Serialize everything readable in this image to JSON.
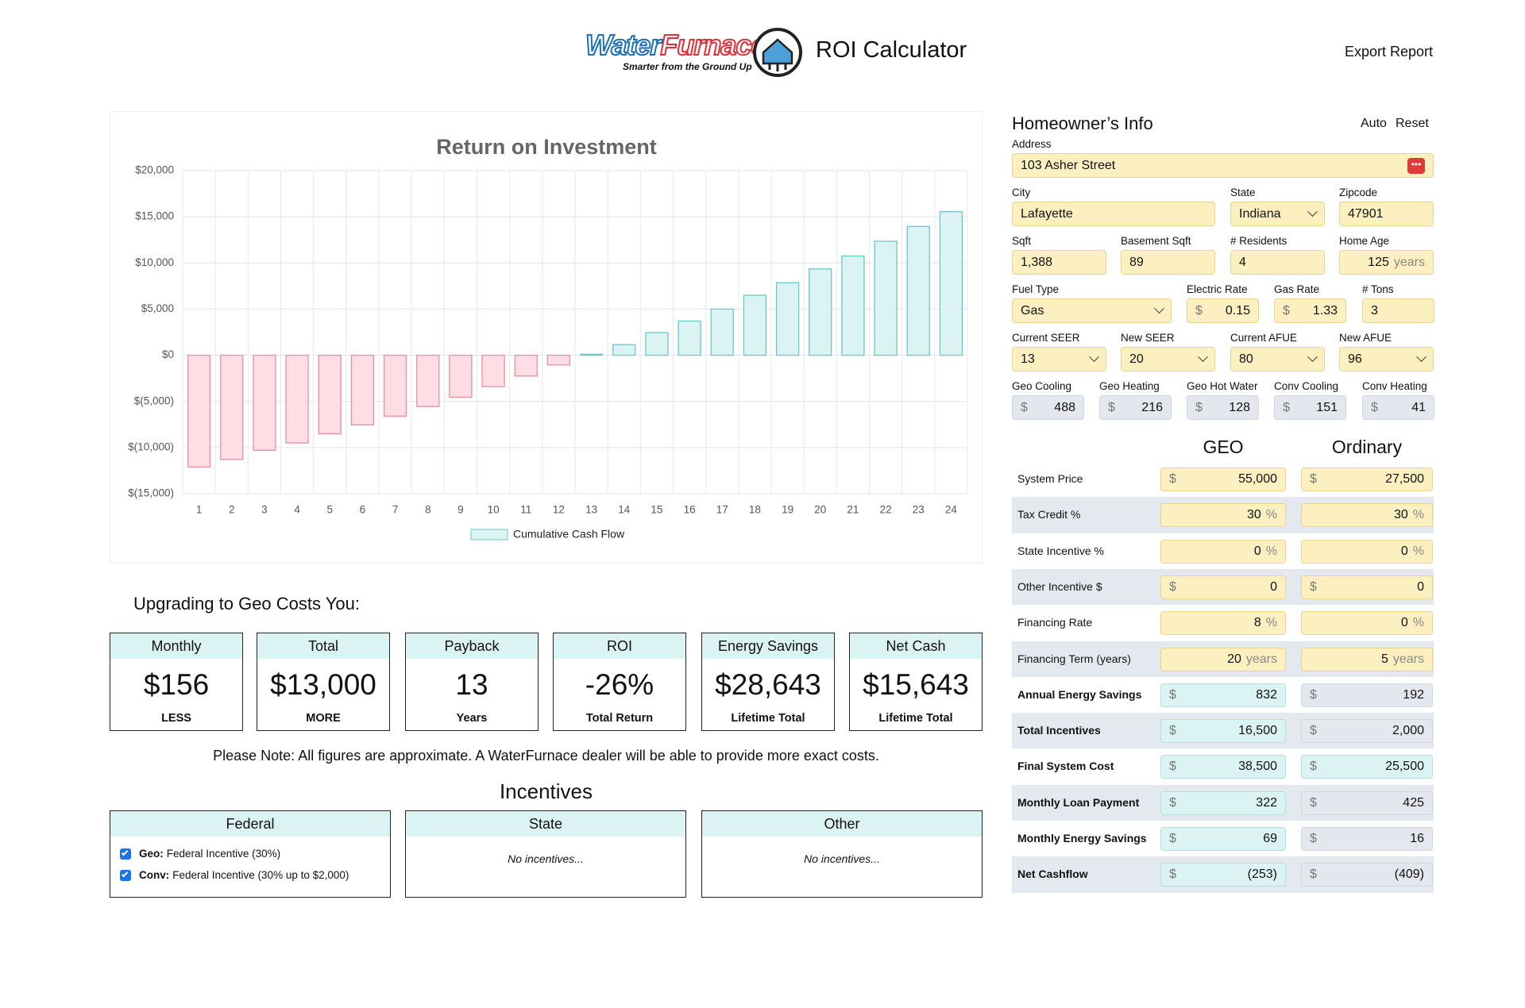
{
  "header": {
    "logo": {
      "name_part1": "Water",
      "name_part2": "Furnace",
      "tagline": "Smarter from the Ground Up"
    },
    "title": "ROI Calculator",
    "export": "Export Report"
  },
  "chart_data": {
    "type": "bar",
    "title": "Return on Investment",
    "categories": [
      "1",
      "2",
      "3",
      "4",
      "5",
      "6",
      "7",
      "8",
      "9",
      "10",
      "11",
      "12",
      "13",
      "14",
      "15",
      "16",
      "17",
      "18",
      "19",
      "20",
      "21",
      "22",
      "23",
      "24"
    ],
    "series": [
      {
        "name": "Cumulative Cash Flow",
        "color": "#dcf3f3",
        "stroke": "#6cc7c7",
        "negative_color": "#ffdde4",
        "negative_stroke": "#e58fa3",
        "values": [
          -12100,
          -11300,
          -10300,
          -9500,
          -8500,
          -7550,
          -6600,
          -5550,
          -4550,
          -3400,
          -2250,
          -1050,
          100,
          1150,
          2450,
          3700,
          5000,
          6500,
          7850,
          9350,
          10750,
          12350,
          13950,
          15550
        ]
      }
    ],
    "ylim": [
      -15000,
      20000
    ],
    "yticks": [
      {
        "value": -15000,
        "label": "$(15,000)"
      },
      {
        "value": -10000,
        "label": "$(10,000)"
      },
      {
        "value": -5000,
        "label": "$(5,000)"
      },
      {
        "value": 0,
        "label": "$0"
      },
      {
        "value": 5000,
        "label": "$5,000"
      },
      {
        "value": 10000,
        "label": "$10,000"
      },
      {
        "value": 15000,
        "label": "$15,000"
      },
      {
        "value": 20000,
        "label": "$20,000"
      }
    ],
    "grid": true,
    "legend": "bottom"
  },
  "summary": {
    "title": "Upgrading to Geo Costs You:",
    "cards": [
      {
        "title": "Monthly",
        "value": "$156",
        "note": "LESS"
      },
      {
        "title": "Total",
        "value": "$13,000",
        "note": "MORE"
      },
      {
        "title": "Payback",
        "value": "13",
        "note": "Years"
      },
      {
        "title": "ROI",
        "value": "-26%",
        "note": "Total Return"
      },
      {
        "title": "Energy Savings",
        "value": "$28,643",
        "note": "Lifetime Total"
      },
      {
        "title": "Net Cash",
        "value": "$15,643",
        "note": "Lifetime Total"
      }
    ],
    "note": "Please Note: All figures are approximate. A WaterFurnace dealer will be able to provide more exact costs."
  },
  "incentives": {
    "title": "Incentives",
    "boxes": [
      {
        "title": "Federal",
        "items": [
          {
            "name": "Geo:",
            "text": "Federal Incentive (30%)"
          },
          {
            "name": "Conv:",
            "text": "Federal Incentive (30% up to $2,000)"
          }
        ]
      },
      {
        "title": "State",
        "empty": "No incentives..."
      },
      {
        "title": "Other",
        "empty": "No incentives..."
      }
    ]
  },
  "homeowner": {
    "title": "Homeowner’s Info",
    "auto": "Auto",
    "reset": "Reset",
    "rows": [
      [
        {
          "label": "Address",
          "value": "103 Asher Street"
        }
      ],
      [
        {
          "label": "City",
          "value": "Lafayette"
        },
        {
          "label": "State",
          "value": "Indiana",
          "select": true
        },
        {
          "label": "Zipcode",
          "value": "47901"
        }
      ],
      [
        {
          "label": "Sqft",
          "value": "1,388"
        },
        {
          "label": "Basement Sqft",
          "value": "89"
        },
        {
          "label": "# Residents",
          "value": "4"
        },
        {
          "label": "Home Age",
          "value": "125",
          "suffix": "years"
        }
      ],
      [
        {
          "label": "Fuel Type",
          "value": "Gas",
          "select": true
        },
        {
          "label": "Electric Rate",
          "value": "0.15",
          "prefix": "$"
        },
        {
          "label": "Gas Rate",
          "value": "1.33",
          "prefix": "$"
        },
        {
          "label": "# Tons",
          "value": "3"
        }
      ],
      [
        {
          "label": "Current SEER",
          "value": "13",
          "select": true
        },
        {
          "label": "New SEER",
          "value": "20",
          "select": true
        },
        {
          "label": "Current AFUE",
          "value": "80",
          "select": true
        },
        {
          "label": "New AFUE",
          "value": "96",
          "select": true
        }
      ],
      [
        {
          "label": "Geo Cooling",
          "value": "488",
          "prefix": "$"
        },
        {
          "label": "Geo Heating",
          "value": "216",
          "prefix": "$"
        },
        {
          "label": "Geo Hot Water",
          "value": "128",
          "prefix": "$"
        },
        {
          "label": "Conv Cooling",
          "value": "151",
          "prefix": "$"
        },
        {
          "label": "Conv Heating",
          "value": "41",
          "prefix": "$"
        }
      ]
    ]
  },
  "comparison": {
    "columns": [
      "GEO",
      "Ordinary"
    ],
    "rows": [
      {
        "label": "System Price",
        "prefix": "$",
        "geo": "55,000",
        "ordinary": "27,500"
      },
      {
        "label": "Tax Credit %",
        "suffix": "%",
        "geo": "30",
        "ordinary": "30"
      },
      {
        "label": "State Incentive %",
        "suffix": "%",
        "geo": "0",
        "ordinary": "0"
      },
      {
        "label": "Other Incentive $",
        "prefix": "$",
        "geo": "0",
        "ordinary": "0"
      },
      {
        "label": "Financing Rate",
        "suffix": "%",
        "geo": "8",
        "ordinary": "0"
      },
      {
        "label": "Financing Term (years)",
        "suffix": "years",
        "geo": "20",
        "ordinary": "5"
      },
      {
        "label": "Annual Energy Savings",
        "prefix": "$",
        "geo": "832",
        "ordinary": "192"
      },
      {
        "label": "Total Incentives",
        "prefix": "$",
        "geo": "16,500",
        "ordinary": "2,000"
      },
      {
        "label": "Final System Cost",
        "prefix": "$",
        "geo": "38,500",
        "ordinary": "25,500"
      },
      {
        "label": "Monthly Loan Payment",
        "prefix": "$",
        "geo": "322",
        "ordinary": "425"
      },
      {
        "label": "Monthly Energy Savings",
        "prefix": "$",
        "geo": "69",
        "ordinary": "16"
      },
      {
        "label": "Net Cashflow",
        "prefix": "$",
        "geo": "(253)",
        "ordinary": "(409)"
      }
    ]
  }
}
